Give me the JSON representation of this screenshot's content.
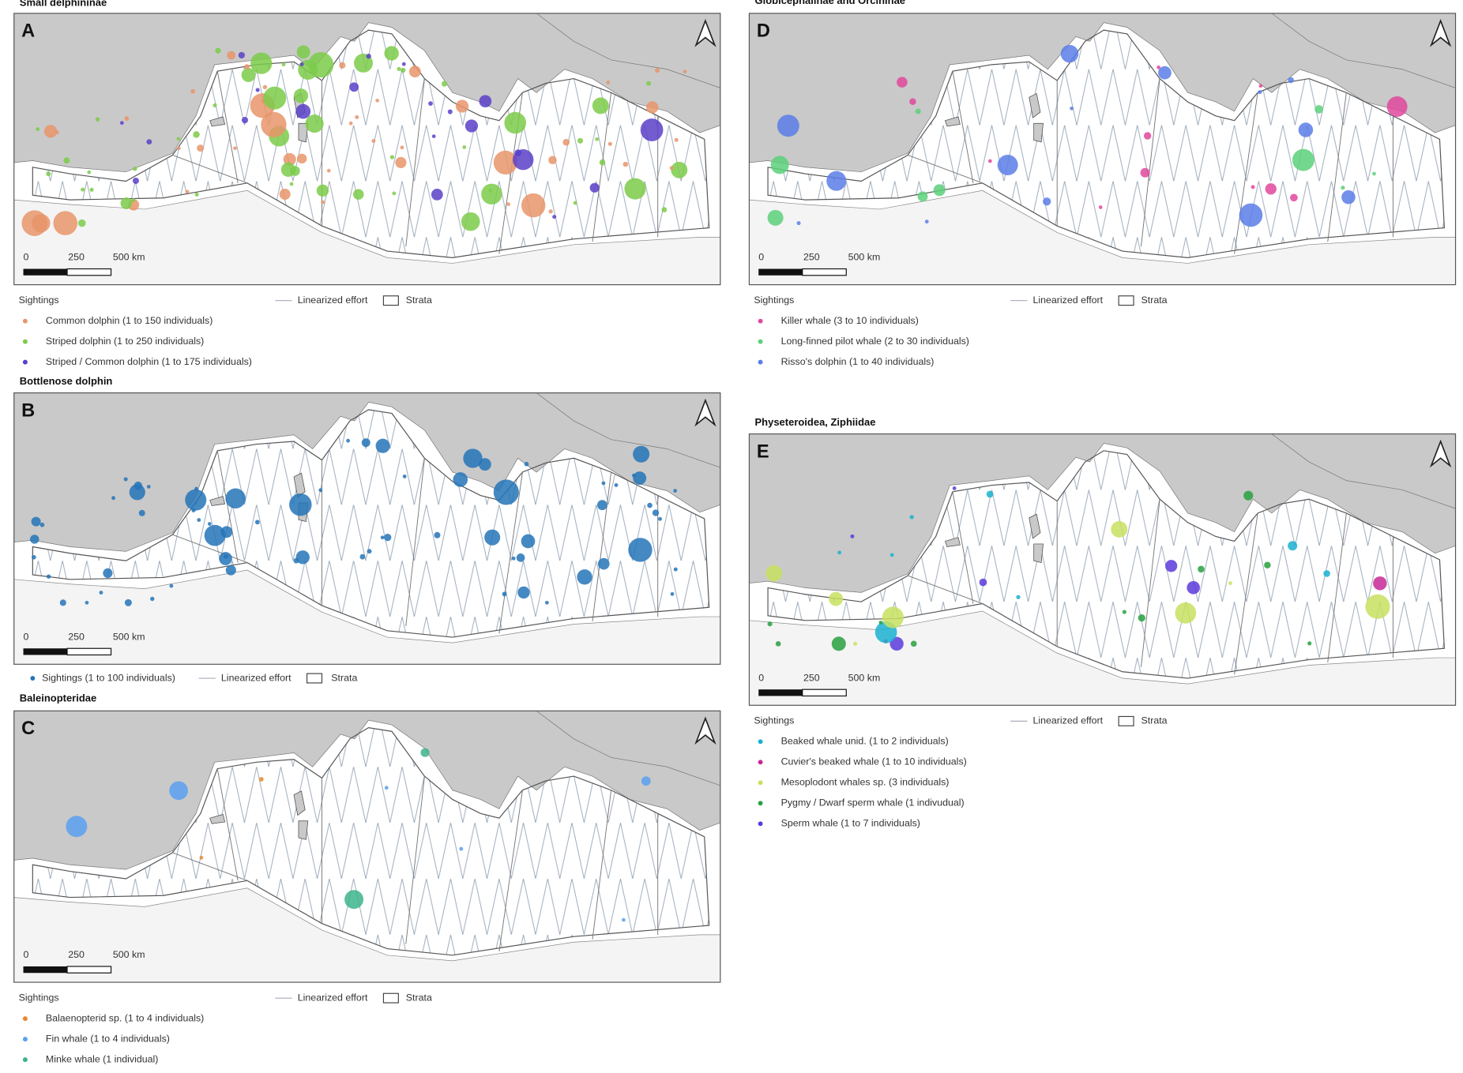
{
  "panels": [
    {
      "letter": "A",
      "title": "Small delphininae",
      "scale_labels": [
        "0",
        "250",
        "500 km"
      ],
      "legend_header": "Sightings",
      "legend_items": [
        {
          "label": "Common dolphin (1 to 150 individuals)",
          "color": "#e8956a"
        },
        {
          "label": "Striped dolphin (1 to 250 individuals)",
          "color": "#7ccb4a"
        },
        {
          "label": "Striped / Common dolphin (1 to 175 individuals)",
          "color": "#5a3fc8"
        }
      ],
      "effort_label": "Linearized effort",
      "strata_label": "Strata"
    },
    {
      "letter": "B",
      "title": "Bottlenose dolphin",
      "scale_labels": [
        "0",
        "250",
        "500 km"
      ],
      "legend_items": [
        {
          "label": "Sightings (1 to 100 individuals)",
          "color": "#2474b8"
        }
      ],
      "effort_label": "Linearized effort",
      "strata_label": "Strata"
    },
    {
      "letter": "C",
      "title": "Baleinopteridae",
      "scale_labels": [
        "0",
        "250",
        "500 km"
      ],
      "legend_header": "Sightings",
      "legend_items": [
        {
          "label": "Balaenopterid sp. (1 to 4 individuals)",
          "color": "#e8882e"
        },
        {
          "label": "Fin whale (1 to 4 individuals)",
          "color": "#5aa0f0"
        },
        {
          "label": "Minke whale (1 individual)",
          "color": "#3cb48c"
        }
      ],
      "effort_label": "Linearized effort",
      "strata_label": "Strata"
    },
    {
      "letter": "D",
      "title": "Globicephalinae and Orcininae",
      "scale_labels": [
        "0",
        "250",
        "500 km"
      ],
      "legend_header": "Sightings",
      "legend_items": [
        {
          "label": "Killer whale (3 to 10 individuals)",
          "color": "#e0489c"
        },
        {
          "label": "Long-finned pilot whale (2 to 30 individuals)",
          "color": "#5cd07a"
        },
        {
          "label": "Risso's dolphin (1 to 40 individuals)",
          "color": "#5a7ee8"
        }
      ],
      "effort_label": "Linearized effort",
      "strata_label": "Strata"
    },
    {
      "letter": "E",
      "title": "Physeteroidea, Ziphiidae",
      "scale_labels": [
        "0",
        "250",
        "500 km"
      ],
      "legend_header": "Sightings",
      "legend_items": [
        {
          "label": "Beaked whale unid. (1 to 2 individuals)",
          "color": "#1ab0d0"
        },
        {
          "label": "Cuvier's beaked whale (1 to 10 individuals)",
          "color": "#c82896"
        },
        {
          "label": "Mesoplodont whales sp. (3 individuals)",
          "color": "#c8e060"
        },
        {
          "label": "Pygmy / Dwarf sperm whale (1 indivudual)",
          "color": "#28a040"
        },
        {
          "label": "Sperm whale (1 to 7 individuals)",
          "color": "#5a3adc"
        }
      ],
      "effort_label": "Linearized effort",
      "strata_label": "Strata"
    }
  ]
}
